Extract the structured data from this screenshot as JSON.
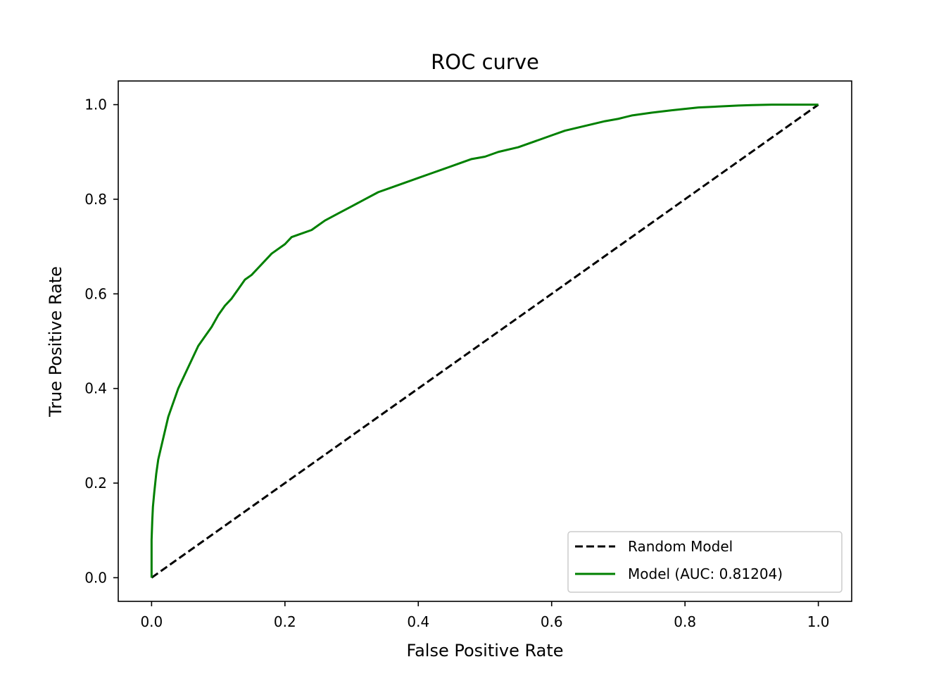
{
  "chart_data": {
    "type": "line",
    "title": "ROC curve",
    "xlabel": "False Positive Rate",
    "ylabel": "True Positive Rate",
    "xlim": [
      -0.05,
      1.05
    ],
    "ylim": [
      -0.05,
      1.05
    ],
    "xticks": [
      0.0,
      0.2,
      0.4,
      0.6,
      0.8,
      1.0
    ],
    "xtick_labels": [
      "0.0",
      "0.2",
      "0.4",
      "0.6",
      "0.8",
      "1.0"
    ],
    "yticks": [
      0.0,
      0.2,
      0.4,
      0.6,
      0.8,
      1.0
    ],
    "ytick_labels": [
      "0.0",
      "0.2",
      "0.4",
      "0.6",
      "0.8",
      "1.0"
    ],
    "grid": false,
    "legend_position": "lower-right",
    "series": [
      {
        "name": "Random Model",
        "color": "#000000",
        "style": "dashed",
        "x": [
          0.0,
          1.0
        ],
        "y": [
          0.0,
          1.0
        ]
      },
      {
        "name": "Model (AUC: 0.81204)",
        "color": "#008000",
        "style": "solid",
        "x": [
          0.0,
          0.0,
          0.001,
          0.002,
          0.004,
          0.007,
          0.01,
          0.015,
          0.02,
          0.025,
          0.03,
          0.035,
          0.04,
          0.05,
          0.06,
          0.07,
          0.08,
          0.09,
          0.1,
          0.11,
          0.12,
          0.13,
          0.14,
          0.15,
          0.16,
          0.17,
          0.18,
          0.2,
          0.21,
          0.22,
          0.24,
          0.25,
          0.26,
          0.28,
          0.3,
          0.32,
          0.34,
          0.36,
          0.38,
          0.4,
          0.42,
          0.44,
          0.46,
          0.48,
          0.5,
          0.52,
          0.55,
          0.58,
          0.6,
          0.62,
          0.65,
          0.68,
          0.7,
          0.72,
          0.75,
          0.78,
          0.8,
          0.82,
          0.85,
          0.88,
          0.9,
          0.93,
          0.95,
          0.98,
          1.0
        ],
        "y": [
          0.0,
          0.08,
          0.12,
          0.15,
          0.18,
          0.22,
          0.25,
          0.28,
          0.31,
          0.34,
          0.36,
          0.38,
          0.4,
          0.43,
          0.46,
          0.49,
          0.51,
          0.53,
          0.555,
          0.575,
          0.59,
          0.61,
          0.63,
          0.64,
          0.655,
          0.67,
          0.685,
          0.705,
          0.72,
          0.725,
          0.735,
          0.745,
          0.755,
          0.77,
          0.785,
          0.8,
          0.815,
          0.825,
          0.835,
          0.845,
          0.855,
          0.865,
          0.875,
          0.885,
          0.89,
          0.9,
          0.91,
          0.925,
          0.935,
          0.945,
          0.955,
          0.965,
          0.97,
          0.977,
          0.983,
          0.988,
          0.991,
          0.994,
          0.996,
          0.998,
          0.999,
          1.0,
          1.0,
          1.0,
          1.0
        ]
      }
    ]
  }
}
